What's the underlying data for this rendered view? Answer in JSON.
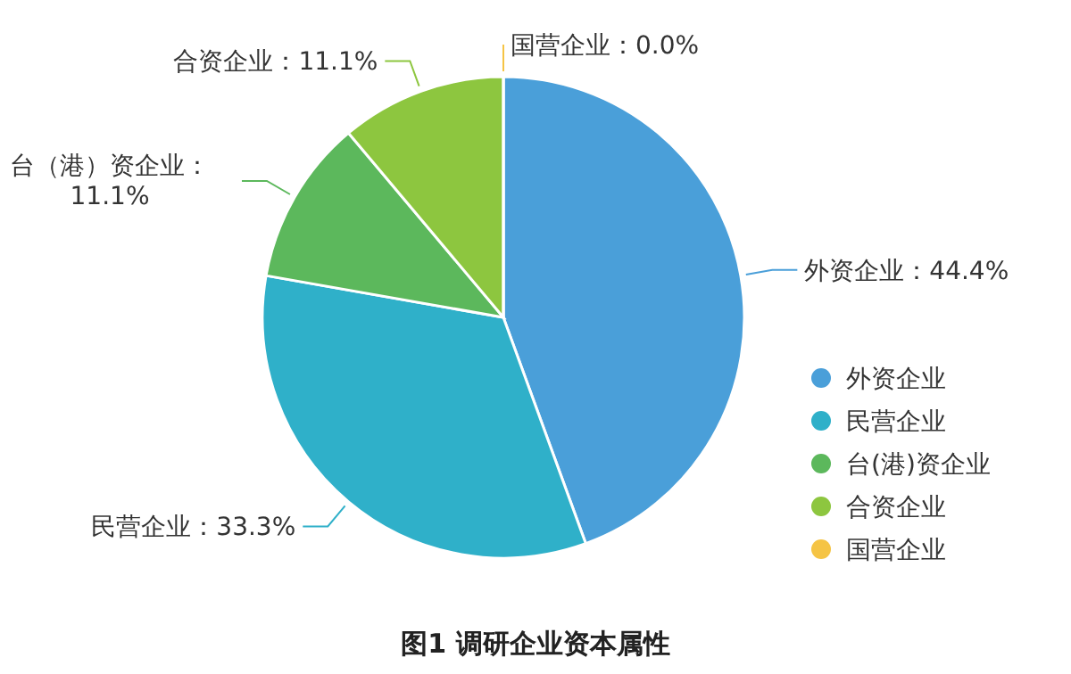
{
  "chart_data": {
    "type": "pie",
    "title": "图1 调研企业资本属性",
    "categories": [
      "外资企业",
      "民营企业",
      "台(港)资企业",
      "合资企业",
      "国营企业"
    ],
    "values": [
      44.4,
      33.3,
      11.1,
      11.1,
      0.0
    ],
    "colors": [
      "#4a9fd9",
      "#2fb0c9",
      "#5cb85c",
      "#8dc63f",
      "#f5c445"
    ],
    "value_labels": [
      "外资企业：44.4%",
      "民营企业：33.3%",
      "台（港）资企业：11.1%",
      "合资企业：11.1%",
      "国营企业：0.0%"
    ],
    "legend": "bottom right"
  }
}
